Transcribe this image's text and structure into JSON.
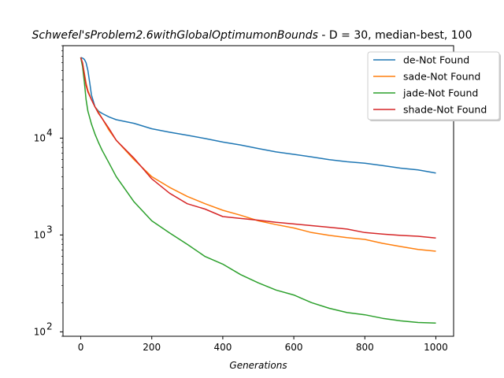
{
  "chart_data": {
    "type": "line",
    "title_italic": "Schwefel'sProblem2.6withGlobalOptimumonBounds",
    "title_rest": "  - D = 30, median-best, 100",
    "xlabel": "Generations",
    "ylabel": "",
    "xlim": [
      -50,
      1050
    ],
    "ylim": [
      90,
      90000
    ],
    "yscale": "log",
    "legend_position": "top-right",
    "xticks": [
      0,
      200,
      400,
      600,
      800,
      1000
    ],
    "xtick_labels": [
      "0",
      "200",
      "400",
      "600",
      "800",
      "1000"
    ],
    "yticks": [
      100,
      1000,
      10000
    ],
    "ytick_labels": [
      "10",
      "10",
      "10"
    ],
    "ytick_exponents": [
      "2",
      "3",
      "4"
    ],
    "series": [
      {
        "name": "de-Not Found",
        "color": "#1f77b4",
        "x": [
          0,
          5,
          10,
          15,
          20,
          25,
          30,
          40,
          50,
          60,
          80,
          100,
          150,
          200,
          250,
          300,
          350,
          400,
          450,
          500,
          550,
          600,
          650,
          700,
          750,
          800,
          850,
          900,
          950,
          1000
        ],
        "y": [
          68000,
          67000,
          65000,
          60000,
          50000,
          38000,
          28000,
          21000,
          19000,
          18000,
          16500,
          15500,
          14200,
          12500,
          11500,
          10700,
          9900,
          9100,
          8500,
          7800,
          7200,
          6800,
          6400,
          6000,
          5700,
          5500,
          5200,
          4900,
          4700,
          4350
        ]
      },
      {
        "name": "sade-Not Found",
        "color": "#ff7f0e",
        "x": [
          0,
          5,
          10,
          15,
          20,
          30,
          40,
          50,
          60,
          80,
          100,
          150,
          200,
          250,
          300,
          350,
          400,
          450,
          500,
          550,
          600,
          650,
          700,
          750,
          800,
          850,
          900,
          950,
          1000
        ],
        "y": [
          68000,
          60000,
          47000,
          37000,
          31000,
          25000,
          21000,
          18500,
          16000,
          12000,
          9500,
          6000,
          4000,
          3100,
          2500,
          2100,
          1800,
          1600,
          1400,
          1280,
          1180,
          1060,
          990,
          940,
          900,
          820,
          760,
          710,
          680
        ]
      },
      {
        "name": "jade-Not Found",
        "color": "#2ca02c",
        "x": [
          0,
          5,
          10,
          15,
          20,
          30,
          40,
          50,
          60,
          80,
          100,
          150,
          200,
          250,
          300,
          350,
          400,
          450,
          500,
          550,
          600,
          650,
          700,
          750,
          800,
          850,
          900,
          950,
          1000
        ],
        "y": [
          68000,
          55000,
          38000,
          25000,
          19000,
          14000,
          11000,
          9000,
          7500,
          5500,
          4000,
          2200,
          1400,
          1050,
          800,
          600,
          500,
          390,
          320,
          270,
          240,
          200,
          175,
          158,
          150,
          138,
          130,
          125,
          123
        ]
      },
      {
        "name": "shade-Not Found",
        "color": "#d62728",
        "x": [
          0,
          5,
          10,
          15,
          20,
          30,
          40,
          50,
          60,
          80,
          100,
          150,
          200,
          250,
          300,
          350,
          400,
          450,
          500,
          550,
          600,
          650,
          700,
          750,
          800,
          850,
          900,
          950,
          1000
        ],
        "y": [
          68000,
          60000,
          45000,
          35000,
          30000,
          25000,
          21000,
          18000,
          16000,
          12500,
          9500,
          6200,
          3800,
          2700,
          2100,
          1850,
          1550,
          1480,
          1420,
          1350,
          1300,
          1250,
          1200,
          1150,
          1060,
          1020,
          990,
          970,
          930
        ]
      }
    ]
  }
}
